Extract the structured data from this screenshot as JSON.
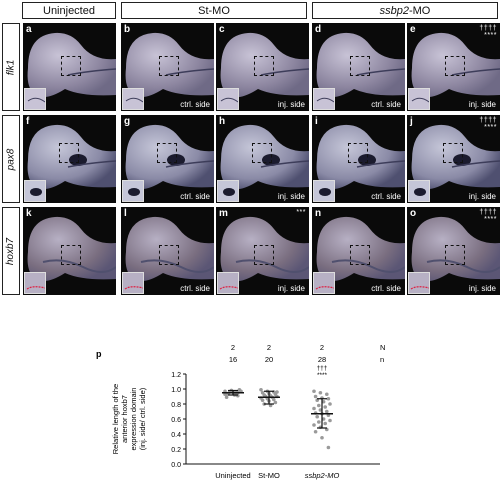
{
  "columns": [
    {
      "label": "Uninjected"
    },
    {
      "label": "St-MO"
    },
    {
      "label_italic": "ssbp2",
      "label_rest": "-MO"
    }
  ],
  "rows": [
    {
      "gene": "flk1"
    },
    {
      "gene": "pax8"
    },
    {
      "gene": "hoxb7"
    }
  ],
  "panels": [
    {
      "letter": "a",
      "side": "",
      "stats": ""
    },
    {
      "letter": "b",
      "side": "ctrl. side",
      "stats": ""
    },
    {
      "letter": "c",
      "side": "inj. side",
      "stats": ""
    },
    {
      "letter": "d",
      "side": "ctrl. side",
      "stats": ""
    },
    {
      "letter": "e",
      "side": "inj. side",
      "stats": "††††\n****"
    },
    {
      "letter": "f",
      "side": "",
      "stats": ""
    },
    {
      "letter": "g",
      "side": "ctrl. side",
      "stats": ""
    },
    {
      "letter": "h",
      "side": "inj. side",
      "stats": ""
    },
    {
      "letter": "i",
      "side": "ctrl. side",
      "stats": ""
    },
    {
      "letter": "j",
      "side": "inj. side",
      "stats": "††††\n****"
    },
    {
      "letter": "k",
      "side": "",
      "stats": ""
    },
    {
      "letter": "l",
      "side": "ctrl. side",
      "stats": ""
    },
    {
      "letter": "m",
      "side": "inj. side",
      "stats": "***"
    },
    {
      "letter": "n",
      "side": "ctrl. side",
      "stats": ""
    },
    {
      "letter": "o",
      "side": "inj. side",
      "stats": "††††\n****"
    }
  ],
  "chart_data": {
    "type": "scatter",
    "panel_letter": "p",
    "categories": [
      "Uninjected",
      "St-MO",
      "ssbp2-MO"
    ],
    "ylabel_lines": [
      "Relative length of the",
      "anterior hoxb7",
      "expression domain",
      "(inj. side/ ctrl. side)"
    ],
    "ylim": [
      0.0,
      1.2
    ],
    "yticks": [
      "0.0",
      "0.2",
      "0.4",
      "0.6",
      "0.8",
      "1.0",
      "1.2"
    ],
    "N_label": "N",
    "n_label": "n",
    "N": [
      "2",
      "2",
      "2"
    ],
    "n": [
      "16",
      "20",
      "28"
    ],
    "significance": [
      "",
      "",
      "†††\n****"
    ],
    "series": [
      {
        "values": [
          0.97,
          0.98,
          0.95,
          0.93,
          0.96,
          0.99,
          0.94,
          0.92,
          0.97,
          0.96,
          0.95,
          0.93,
          0.98,
          0.91,
          0.89,
          0.96
        ],
        "mean": 0.95,
        "sd": [
          0.92,
          0.98
        ]
      },
      {
        "values": [
          0.99,
          0.97,
          0.96,
          0.95,
          0.94,
          0.93,
          0.92,
          0.91,
          0.9,
          0.9,
          0.89,
          0.88,
          0.87,
          0.86,
          0.85,
          0.84,
          0.82,
          0.8,
          0.78,
          0.96
        ],
        "mean": 0.89,
        "sd": [
          0.8,
          0.97
        ]
      },
      {
        "values": [
          0.97,
          0.95,
          0.93,
          0.9,
          0.88,
          0.87,
          0.85,
          0.83,
          0.8,
          0.78,
          0.76,
          0.74,
          0.72,
          0.7,
          0.68,
          0.67,
          0.65,
          0.63,
          0.6,
          0.58,
          0.56,
          0.54,
          0.52,
          0.49,
          0.46,
          0.43,
          0.35,
          0.22
        ],
        "mean": 0.67,
        "sd": [
          0.48,
          0.87
        ]
      }
    ]
  }
}
